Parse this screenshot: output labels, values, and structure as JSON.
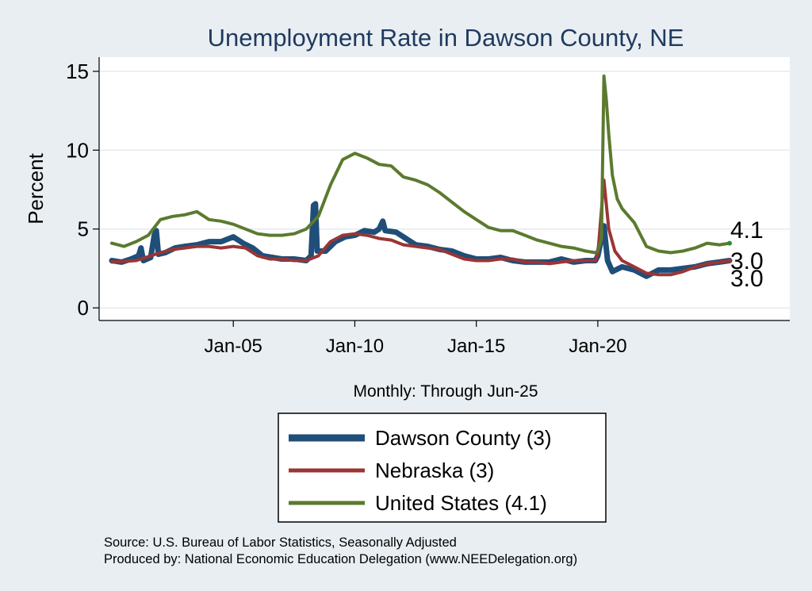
{
  "chart_data": {
    "type": "line",
    "title": "Unemployment Rate in Dawson  County, NE",
    "xlabel": "Monthly: Through Jun-25",
    "ylabel": "Percent",
    "x_range": [
      2000.0,
      2025.42
    ],
    "ylim": [
      -0.8,
      15.9
    ],
    "y_ticks": [
      0,
      5,
      10,
      15
    ],
    "x_ticks": [
      {
        "label": "Jan-05",
        "value": 2005
      },
      {
        "label": "Jan-10",
        "value": 2010
      },
      {
        "label": "Jan-15",
        "value": 2015
      },
      {
        "label": "Jan-20",
        "value": 2020
      }
    ],
    "grid": true,
    "legend_position": "bottom-center",
    "series": [
      {
        "name": "Dawson  County (3)",
        "legend_label": "Dawson  County (3)",
        "color": "#1f4e79",
        "end_label": "3.0",
        "points": [
          [
            2000.0,
            3.0
          ],
          [
            2000.4,
            2.9
          ],
          [
            2000.8,
            3.1
          ],
          [
            2001.1,
            3.3
          ],
          [
            2001.2,
            3.8
          ],
          [
            2001.3,
            3.0
          ],
          [
            2001.6,
            3.2
          ],
          [
            2001.75,
            4.6
          ],
          [
            2001.83,
            4.9
          ],
          [
            2001.92,
            3.4
          ],
          [
            2002.2,
            3.5
          ],
          [
            2002.6,
            3.8
          ],
          [
            2003.0,
            3.9
          ],
          [
            2003.5,
            4.0
          ],
          [
            2004.0,
            4.2
          ],
          [
            2004.5,
            4.2
          ],
          [
            2005.0,
            4.5
          ],
          [
            2005.4,
            4.1
          ],
          [
            2005.8,
            3.8
          ],
          [
            2006.2,
            3.3
          ],
          [
            2006.6,
            3.2
          ],
          [
            2007.0,
            3.1
          ],
          [
            2007.5,
            3.1
          ],
          [
            2008.0,
            3.0
          ],
          [
            2008.2,
            3.3
          ],
          [
            2008.3,
            6.5
          ],
          [
            2008.38,
            6.6
          ],
          [
            2008.45,
            3.6
          ],
          [
            2008.8,
            3.6
          ],
          [
            2009.2,
            4.2
          ],
          [
            2009.6,
            4.5
          ],
          [
            2010.0,
            4.6
          ],
          [
            2010.4,
            4.9
          ],
          [
            2010.8,
            4.8
          ],
          [
            2011.0,
            5.0
          ],
          [
            2011.15,
            5.5
          ],
          [
            2011.25,
            4.9
          ],
          [
            2011.7,
            4.8
          ],
          [
            2012.0,
            4.5
          ],
          [
            2012.5,
            4.0
          ],
          [
            2013.0,
            3.9
          ],
          [
            2013.5,
            3.7
          ],
          [
            2014.0,
            3.6
          ],
          [
            2014.5,
            3.3
          ],
          [
            2015.0,
            3.1
          ],
          [
            2015.5,
            3.1
          ],
          [
            2016.0,
            3.2
          ],
          [
            2016.5,
            3.0
          ],
          [
            2017.0,
            2.9
          ],
          [
            2017.5,
            2.9
          ],
          [
            2018.0,
            2.9
          ],
          [
            2018.5,
            3.1
          ],
          [
            2019.0,
            2.9
          ],
          [
            2019.5,
            3.0
          ],
          [
            2019.9,
            3.0
          ],
          [
            2020.0,
            3.3
          ],
          [
            2020.25,
            5.2
          ],
          [
            2020.4,
            3.0
          ],
          [
            2020.6,
            2.3
          ],
          [
            2021.0,
            2.6
          ],
          [
            2021.5,
            2.4
          ],
          [
            2022.0,
            2.0
          ],
          [
            2022.5,
            2.4
          ],
          [
            2023.0,
            2.4
          ],
          [
            2023.5,
            2.5
          ],
          [
            2024.0,
            2.6
          ],
          [
            2024.5,
            2.8
          ],
          [
            2025.0,
            2.9
          ],
          [
            2025.42,
            3.0
          ]
        ]
      },
      {
        "name": "Nebraska (3)",
        "legend_label": "Nebraska (3)",
        "color": "#9b3535",
        "end_label": "3.0",
        "points": [
          [
            2000.0,
            2.9
          ],
          [
            2001.0,
            3.0
          ],
          [
            2002.0,
            3.5
          ],
          [
            2002.5,
            3.7
          ],
          [
            2003.0,
            3.8
          ],
          [
            2003.5,
            3.9
          ],
          [
            2004.0,
            3.9
          ],
          [
            2004.5,
            3.8
          ],
          [
            2005.0,
            3.9
          ],
          [
            2005.5,
            3.8
          ],
          [
            2006.0,
            3.3
          ],
          [
            2006.5,
            3.1
          ],
          [
            2007.0,
            3.1
          ],
          [
            2007.5,
            3.0
          ],
          [
            2008.0,
            3.0
          ],
          [
            2008.5,
            3.3
          ],
          [
            2009.0,
            4.2
          ],
          [
            2009.5,
            4.6
          ],
          [
            2010.0,
            4.7
          ],
          [
            2010.5,
            4.6
          ],
          [
            2011.0,
            4.4
          ],
          [
            2011.5,
            4.3
          ],
          [
            2012.0,
            4.0
          ],
          [
            2012.5,
            3.9
          ],
          [
            2013.0,
            3.8
          ],
          [
            2013.5,
            3.7
          ],
          [
            2014.0,
            3.4
          ],
          [
            2014.5,
            3.1
          ],
          [
            2015.0,
            3.0
          ],
          [
            2015.5,
            3.0
          ],
          [
            2016.0,
            3.1
          ],
          [
            2016.5,
            3.1
          ],
          [
            2017.0,
            2.9
          ],
          [
            2017.5,
            2.9
          ],
          [
            2018.0,
            2.8
          ],
          [
            2018.5,
            2.9
          ],
          [
            2019.0,
            3.0
          ],
          [
            2019.5,
            3.0
          ],
          [
            2019.9,
            3.0
          ],
          [
            2020.0,
            3.4
          ],
          [
            2020.25,
            8.1
          ],
          [
            2020.45,
            5.0
          ],
          [
            2020.7,
            3.6
          ],
          [
            2021.0,
            3.0
          ],
          [
            2021.5,
            2.6
          ],
          [
            2022.0,
            2.2
          ],
          [
            2022.5,
            2.1
          ],
          [
            2023.0,
            2.1
          ],
          [
            2023.5,
            2.3
          ],
          [
            2024.0,
            2.6
          ],
          [
            2024.5,
            2.8
          ],
          [
            2025.0,
            2.9
          ],
          [
            2025.42,
            3.0
          ]
        ]
      },
      {
        "name": "United States (4.1)",
        "legend_label": "United States (4.1)",
        "color": "#5b7a2f",
        "end_label": "4.1",
        "points": [
          [
            2000.0,
            4.1
          ],
          [
            2000.5,
            3.9
          ],
          [
            2001.0,
            4.2
          ],
          [
            2001.5,
            4.6
          ],
          [
            2002.0,
            5.6
          ],
          [
            2002.5,
            5.8
          ],
          [
            2003.0,
            5.9
          ],
          [
            2003.5,
            6.1
          ],
          [
            2004.0,
            5.6
          ],
          [
            2004.5,
            5.5
          ],
          [
            2005.0,
            5.3
          ],
          [
            2005.5,
            5.0
          ],
          [
            2006.0,
            4.7
          ],
          [
            2006.5,
            4.6
          ],
          [
            2007.0,
            4.6
          ],
          [
            2007.5,
            4.7
          ],
          [
            2008.0,
            5.0
          ],
          [
            2008.5,
            5.8
          ],
          [
            2009.0,
            7.8
          ],
          [
            2009.5,
            9.4
          ],
          [
            2010.0,
            9.8
          ],
          [
            2010.5,
            9.5
          ],
          [
            2011.0,
            9.1
          ],
          [
            2011.5,
            9.0
          ],
          [
            2012.0,
            8.3
          ],
          [
            2012.5,
            8.1
          ],
          [
            2013.0,
            7.8
          ],
          [
            2013.5,
            7.3
          ],
          [
            2014.0,
            6.7
          ],
          [
            2014.5,
            6.1
          ],
          [
            2015.0,
            5.6
          ],
          [
            2015.5,
            5.1
          ],
          [
            2016.0,
            4.9
          ],
          [
            2016.5,
            4.9
          ],
          [
            2017.0,
            4.6
          ],
          [
            2017.5,
            4.3
          ],
          [
            2018.0,
            4.1
          ],
          [
            2018.5,
            3.9
          ],
          [
            2019.0,
            3.8
          ],
          [
            2019.5,
            3.6
          ],
          [
            2019.9,
            3.5
          ],
          [
            2020.0,
            3.6
          ],
          [
            2020.15,
            4.4
          ],
          [
            2020.25,
            14.7
          ],
          [
            2020.35,
            13.2
          ],
          [
            2020.45,
            11.0
          ],
          [
            2020.6,
            8.4
          ],
          [
            2020.8,
            6.9
          ],
          [
            2021.0,
            6.3
          ],
          [
            2021.5,
            5.4
          ],
          [
            2022.0,
            3.9
          ],
          [
            2022.5,
            3.6
          ],
          [
            2023.0,
            3.5
          ],
          [
            2023.5,
            3.6
          ],
          [
            2024.0,
            3.8
          ],
          [
            2024.5,
            4.1
          ],
          [
            2025.0,
            4.0
          ],
          [
            2025.42,
            4.1
          ]
        ]
      }
    ],
    "source_note": "Source: U.S. Bureau of Labor Statistics, Seasonally Adjusted",
    "produced_note": "Produced by: National Economic Education Delegation (www.NEEDelegation.org)"
  }
}
